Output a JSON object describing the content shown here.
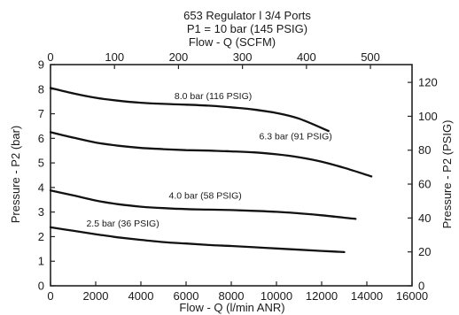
{
  "chart_data": {
    "type": "line",
    "title": "653 Regulator l 3/4 Ports",
    "subtitle": "P1 = 10 bar (145 PSIG)",
    "xlabel": "Flow - Q (l/min ANR)",
    "x2label": "Flow - Q (SCFM)",
    "ylabel": "Pressure - P2 (bar)",
    "y2label": "Pressure - P2 (PSIG)",
    "xlim": [
      0,
      16000
    ],
    "ylim": [
      0,
      9
    ],
    "x2lim": [
      0,
      565
    ],
    "y2lim": [
      0,
      130.5
    ],
    "grid": false,
    "x_ticks": [
      "0",
      "2000",
      "4000",
      "6000",
      "8000",
      "10000",
      "12000",
      "14000",
      "16000"
    ],
    "x_tick_values": [
      0,
      2000,
      4000,
      6000,
      8000,
      10000,
      12000,
      14000,
      16000
    ],
    "y_ticks": [
      "0",
      "1",
      "2",
      "3",
      "4",
      "5",
      "6",
      "7",
      "8",
      "9"
    ],
    "y_tick_values": [
      0,
      1,
      2,
      3,
      4,
      5,
      6,
      7,
      8,
      9
    ],
    "x2_ticks": [
      "0",
      "100",
      "200",
      "300",
      "400",
      "500"
    ],
    "x2_tick_values": [
      0,
      100,
      200,
      300,
      400,
      500
    ],
    "y2_ticks": [
      "0",
      "20",
      "40",
      "60",
      "80",
      "100",
      "120"
    ],
    "y2_tick_values": [
      0,
      20,
      40,
      60,
      80,
      100,
      120
    ],
    "series": [
      {
        "name": "8.0 bar (116 PSIG)",
        "label_at": [
          7200,
          7.6
        ],
        "x": [
          0,
          1000,
          2000,
          3000,
          4000,
          5000,
          6000,
          7000,
          8000,
          9000,
          10000,
          11000,
          12300
        ],
        "y": [
          8.05,
          7.83,
          7.65,
          7.53,
          7.45,
          7.4,
          7.37,
          7.33,
          7.26,
          7.17,
          7.03,
          6.8,
          6.3
        ]
      },
      {
        "name": "6.3 bar (91 PSIG)",
        "label_at": [
          10850,
          5.95
        ],
        "x": [
          0,
          1000,
          2000,
          3000,
          4000,
          5000,
          6000,
          7000,
          8000,
          9000,
          10000,
          11000,
          12000,
          13000,
          14200
        ],
        "y": [
          6.25,
          6.03,
          5.83,
          5.7,
          5.61,
          5.56,
          5.52,
          5.5,
          5.47,
          5.43,
          5.35,
          5.23,
          5.05,
          4.8,
          4.45
        ]
      },
      {
        "name": "4.0 bar (58 PSIG)",
        "label_at": [
          6850,
          3.55
        ],
        "x": [
          0,
          1000,
          2000,
          3000,
          4000,
          5000,
          6000,
          7000,
          8000,
          9000,
          10000,
          11000,
          12000,
          13500
        ],
        "y": [
          3.88,
          3.68,
          3.47,
          3.32,
          3.22,
          3.16,
          3.12,
          3.1,
          3.08,
          3.05,
          3.01,
          2.95,
          2.87,
          2.72
        ]
      },
      {
        "name": "2.5 bar (36 PSIG)",
        "label_at": [
          3200,
          2.42
        ],
        "x": [
          0,
          1000,
          2000,
          3000,
          4000,
          5000,
          6000,
          7000,
          8000,
          9000,
          10000,
          11000,
          12000,
          13000
        ],
        "y": [
          2.38,
          2.24,
          2.1,
          1.97,
          1.87,
          1.78,
          1.72,
          1.66,
          1.62,
          1.57,
          1.52,
          1.47,
          1.42,
          1.37
        ]
      }
    ]
  }
}
